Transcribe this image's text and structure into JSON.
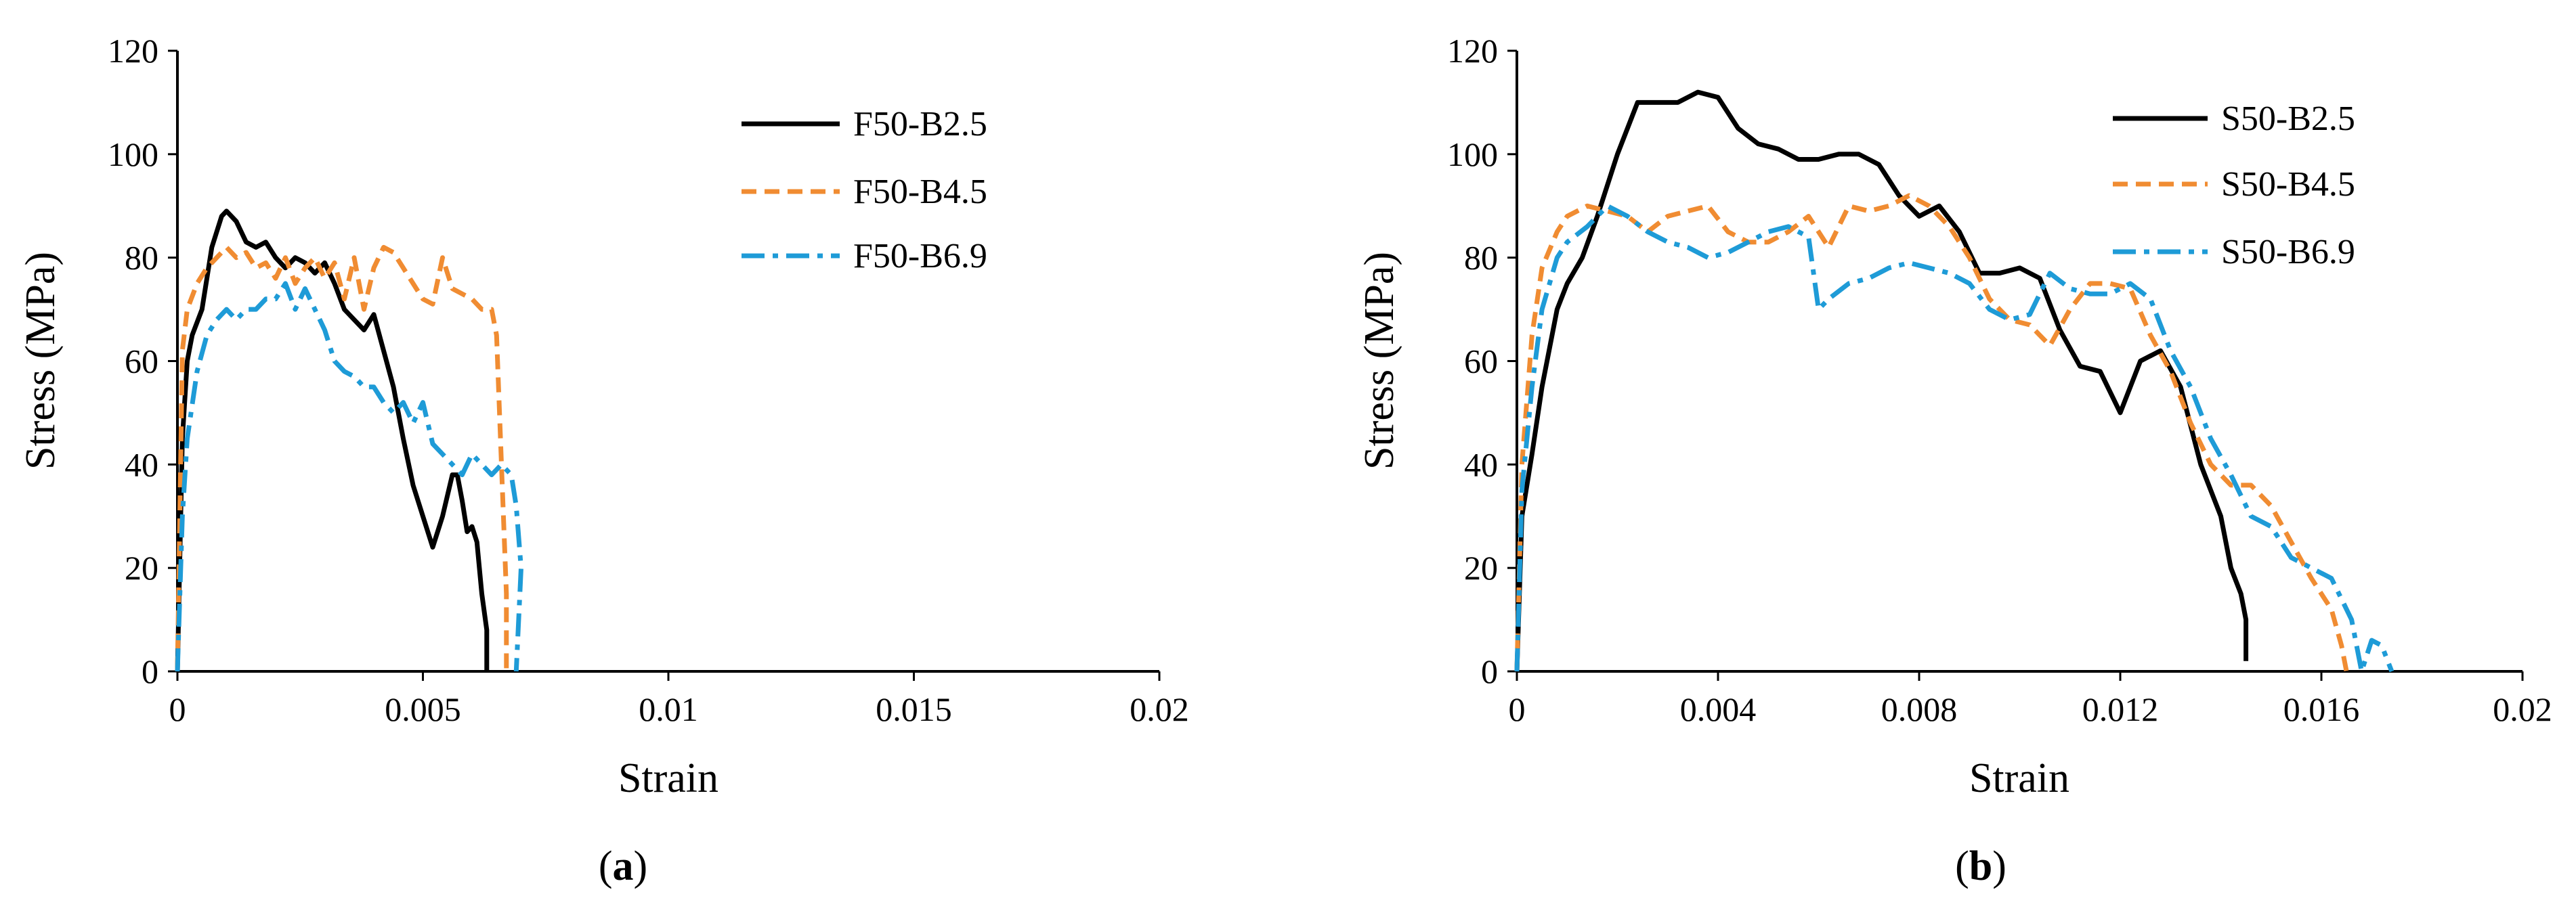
{
  "chart_data": [
    {
      "type": "line",
      "caption_open": "(",
      "caption_letter": "a",
      "caption_close": ")",
      "title": "",
      "xlabel": "Strain",
      "ylabel": "Stress (MPa)",
      "xlim": [
        0,
        0.02
      ],
      "ylim": [
        0,
        120
      ],
      "xticks": [
        0,
        0.005,
        0.01,
        0.015,
        0.02
      ],
      "xtick_labels": [
        "0",
        "0.005",
        "0.01",
        "0.015",
        "0.02"
      ],
      "yticks": [
        0,
        20,
        40,
        60,
        80,
        100,
        120
      ],
      "ytick_labels": [
        "0",
        "20",
        "40",
        "60",
        "80",
        "100",
        "120"
      ],
      "grid": false,
      "legend": "top-right",
      "series": [
        {
          "name": "F50-B2.5",
          "color": "#000000",
          "dash": "solid",
          "x": [
            0,
            0.0001,
            0.0002,
            0.0003,
            0.0005,
            0.0007,
            0.0009,
            0.001,
            0.0012,
            0.0014,
            0.0016,
            0.0018,
            0.002,
            0.0022,
            0.0024,
            0.0026,
            0.0028,
            0.003,
            0.0032,
            0.0034,
            0.0036,
            0.0038,
            0.004,
            0.0042,
            0.0044,
            0.0046,
            0.0048,
            0.005,
            0.0052,
            0.0054,
            0.0056,
            0.0057,
            0.0058,
            0.0059,
            0.006,
            0.0061,
            0.0062,
            0.0063,
            0.0063,
            0.0063
          ],
          "y": [
            0,
            45,
            60,
            65,
            70,
            82,
            88,
            89,
            87,
            83,
            82,
            83,
            80,
            78,
            80,
            79,
            77,
            79,
            75,
            70,
            68,
            66,
            69,
            62,
            55,
            45,
            36,
            30,
            24,
            30,
            38,
            38,
            33,
            27,
            28,
            25,
            15,
            8,
            3,
            0
          ]
        },
        {
          "name": "F50-B4.5",
          "color": "#F08C32",
          "dash": "dashed",
          "x": [
            0,
            0.0001,
            0.0002,
            0.0004,
            0.0006,
            0.0008,
            0.001,
            0.0012,
            0.0014,
            0.0016,
            0.0018,
            0.002,
            0.0022,
            0.0024,
            0.0026,
            0.0028,
            0.003,
            0.0032,
            0.0034,
            0.0036,
            0.0038,
            0.004,
            0.0042,
            0.0044,
            0.0046,
            0.0048,
            0.005,
            0.0052,
            0.0054,
            0.0056,
            0.0058,
            0.006,
            0.0062,
            0.0064,
            0.0065,
            0.0066,
            0.0067,
            0.0067
          ],
          "y": [
            0,
            62,
            70,
            75,
            78,
            80,
            82,
            80,
            81,
            78,
            79,
            76,
            80,
            75,
            78,
            80,
            76,
            79,
            72,
            80,
            70,
            78,
            82,
            81,
            78,
            75,
            72,
            71,
            80,
            74,
            73,
            72,
            70,
            70,
            65,
            40,
            15,
            0
          ]
        },
        {
          "name": "F50-B6.9",
          "color": "#1E9BD7",
          "dash": "dashdot",
          "x": [
            0,
            0.0001,
            0.0002,
            0.0004,
            0.0006,
            0.0008,
            0.001,
            0.0012,
            0.0014,
            0.0016,
            0.0018,
            0.002,
            0.0022,
            0.0024,
            0.0026,
            0.0028,
            0.003,
            0.0032,
            0.0034,
            0.0036,
            0.0038,
            0.004,
            0.0042,
            0.0044,
            0.0046,
            0.0048,
            0.005,
            0.0052,
            0.0054,
            0.0056,
            0.0058,
            0.006,
            0.0062,
            0.0064,
            0.0066,
            0.0068,
            0.0069,
            0.007,
            0.0069
          ],
          "y": [
            0,
            30,
            45,
            58,
            65,
            68,
            70,
            68,
            70,
            70,
            72,
            72,
            75,
            70,
            74,
            70,
            66,
            60,
            58,
            57,
            55,
            55,
            52,
            50,
            52,
            48,
            52,
            44,
            42,
            40,
            38,
            42,
            40,
            38,
            40,
            38,
            32,
            20,
            0
          ]
        }
      ]
    },
    {
      "type": "line",
      "caption_open": "(",
      "caption_letter": "b",
      "caption_close": ")",
      "title": "",
      "xlabel": "Strain",
      "ylabel": "Stress (MPa)",
      "xlim": [
        0,
        0.02
      ],
      "ylim": [
        0,
        120
      ],
      "xticks": [
        0,
        0.004,
        0.008,
        0.012,
        0.016,
        0.02
      ],
      "xtick_labels": [
        "0",
        "0.004",
        "0.008",
        "0.012",
        "0.016",
        "0.02"
      ],
      "yticks": [
        0,
        20,
        40,
        60,
        80,
        100,
        120
      ],
      "ytick_labels": [
        "0",
        "20",
        "40",
        "60",
        "80",
        "100",
        "120"
      ],
      "grid": false,
      "legend": "top-right",
      "series": [
        {
          "name": "S50-B2.5",
          "color": "#000000",
          "dash": "solid",
          "x": [
            0,
            0.0001,
            0.0003,
            0.0005,
            0.0008,
            0.001,
            0.0013,
            0.0016,
            0.002,
            0.0024,
            0.0028,
            0.0032,
            0.0036,
            0.004,
            0.0044,
            0.0048,
            0.0052,
            0.0056,
            0.006,
            0.0064,
            0.0068,
            0.0072,
            0.0076,
            0.008,
            0.0084,
            0.0088,
            0.0092,
            0.0096,
            0.01,
            0.0104,
            0.0108,
            0.0112,
            0.0116,
            0.012,
            0.0124,
            0.0128,
            0.0132,
            0.0136,
            0.014,
            0.0142,
            0.0144,
            0.0145,
            0.0145
          ],
          "y": [
            0,
            30,
            42,
            55,
            70,
            75,
            80,
            88,
            100,
            110,
            110,
            110,
            112,
            111,
            105,
            102,
            101,
            99,
            99,
            100,
            100,
            98,
            92,
            88,
            90,
            85,
            77,
            77,
            78,
            76,
            66,
            59,
            58,
            50,
            60,
            62,
            55,
            40,
            30,
            20,
            15,
            10,
            2
          ]
        },
        {
          "name": "S50-B4.5",
          "color": "#F08C32",
          "dash": "dashed",
          "x": [
            0,
            0.0001,
            0.0003,
            0.0005,
            0.0008,
            0.001,
            0.0014,
            0.0018,
            0.0022,
            0.0026,
            0.003,
            0.0034,
            0.0038,
            0.0042,
            0.0046,
            0.005,
            0.0054,
            0.0058,
            0.0062,
            0.0066,
            0.007,
            0.0074,
            0.0078,
            0.0082,
            0.0086,
            0.009,
            0.0094,
            0.0098,
            0.0102,
            0.0106,
            0.011,
            0.0114,
            0.0118,
            0.0122,
            0.0126,
            0.013,
            0.0134,
            0.0138,
            0.0142,
            0.0146,
            0.015,
            0.0154,
            0.0158,
            0.0162,
            0.0164,
            0.0165
          ],
          "y": [
            0,
            40,
            65,
            78,
            85,
            88,
            90,
            89,
            88,
            85,
            88,
            89,
            90,
            85,
            83,
            83,
            85,
            88,
            82,
            90,
            89,
            90,
            92,
            90,
            86,
            80,
            72,
            68,
            67,
            63,
            70,
            75,
            75,
            74,
            65,
            58,
            48,
            40,
            36,
            36,
            32,
            25,
            18,
            12,
            5,
            0
          ]
        },
        {
          "name": "S50-B6.9",
          "color": "#1E9BD7",
          "dash": "dashdot",
          "x": [
            0,
            0.0001,
            0.0003,
            0.0005,
            0.0008,
            0.001,
            0.0014,
            0.0018,
            0.0022,
            0.0026,
            0.003,
            0.0034,
            0.0038,
            0.0042,
            0.0046,
            0.005,
            0.0054,
            0.0058,
            0.006,
            0.0062,
            0.0066,
            0.007,
            0.0074,
            0.0078,
            0.0082,
            0.0086,
            0.009,
            0.0094,
            0.0098,
            0.0102,
            0.0106,
            0.011,
            0.0114,
            0.0118,
            0.0122,
            0.0126,
            0.013,
            0.0134,
            0.0138,
            0.0142,
            0.0146,
            0.015,
            0.0154,
            0.0158,
            0.0162,
            0.0166,
            0.0168,
            0.017,
            0.0172,
            0.0174
          ],
          "y": [
            0,
            35,
            55,
            70,
            80,
            83,
            86,
            90,
            88,
            85,
            83,
            82,
            80,
            81,
            83,
            85,
            86,
            84,
            70,
            72,
            75,
            76,
            78,
            79,
            78,
            77,
            75,
            70,
            68,
            69,
            77,
            74,
            73,
            73,
            75,
            72,
            62,
            55,
            45,
            38,
            30,
            28,
            22,
            20,
            18,
            10,
            0,
            6,
            5,
            0
          ]
        }
      ]
    }
  ]
}
